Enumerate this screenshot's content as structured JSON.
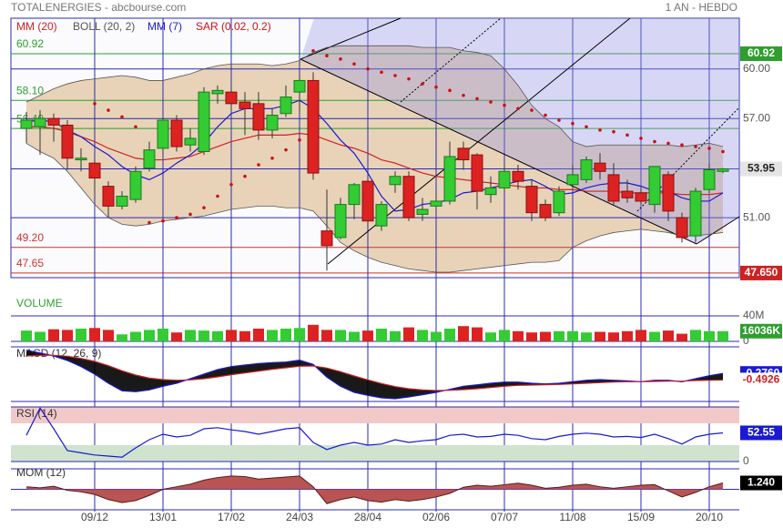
{
  "header": {
    "title": "TOTALENERGIES - abcbourse.com",
    "period": "1 AN - HEBDO"
  },
  "chart_data": [
    {
      "type": "candlestick",
      "categories": [
        null,
        null,
        null,
        null,
        null,
        "09/12",
        null,
        null,
        null,
        null,
        "13/01",
        null,
        null,
        null,
        null,
        "17/02",
        null,
        null,
        null,
        null,
        "24/03",
        null,
        null,
        null,
        null,
        "28/04",
        null,
        null,
        null,
        null,
        "02/06",
        null,
        null,
        null,
        null,
        "07/07",
        null,
        null,
        null,
        null,
        "11/08",
        null,
        null,
        null,
        null,
        "15/09",
        null,
        null,
        null,
        null,
        "20/10",
        null
      ],
      "open": [
        56.4,
        56.5,
        57.0,
        56.6,
        54.5,
        54.3,
        52.9,
        51.7,
        52.1,
        54.0,
        55.2,
        56.9,
        55.4,
        55.0,
        58.5,
        58.6,
        58.0,
        57.9,
        56.3,
        57.3,
        58.6,
        59.3,
        50.2,
        49.8,
        51.8,
        53.2,
        50.5,
        53.0,
        53.5,
        51.2,
        51.7,
        52.0,
        55.2,
        54.8,
        52.4,
        52.8,
        53.8,
        52.9,
        51.8,
        51.3,
        53.0,
        53.3,
        54.3,
        53.6,
        52.6,
        52.5,
        51.8,
        53.6,
        51.0,
        49.9,
        52.7,
        53.8
      ],
      "high": [
        57.4,
        57.5,
        57.3,
        56.9,
        55.2,
        54.5,
        53.2,
        52.6,
        54.1,
        55.6,
        57.1,
        57.2,
        56.4,
        58.9,
        59.0,
        58.9,
        58.6,
        58.6,
        57.6,
        59.0,
        59.6,
        59.8,
        52.7,
        52.2,
        53.1,
        53.4,
        52.0,
        53.8,
        53.8,
        52.2,
        52.6,
        55.6,
        55.6,
        54.9,
        53.5,
        54.2,
        54.2,
        53.3,
        52.1,
        52.9,
        54.2,
        54.7,
        54.9,
        54.3,
        53.3,
        52.8,
        54.1,
        53.8,
        51.3,
        52.8,
        54.3,
        54.0
      ],
      "low": [
        55.5,
        54.8,
        55.6,
        53.9,
        53.8,
        52.4,
        51.0,
        51.5,
        51.9,
        53.8,
        54.9,
        55.0,
        55.0,
        54.8,
        57.9,
        57.5,
        56.0,
        55.7,
        55.8,
        57.1,
        57.3,
        53.3,
        47.8,
        49.7,
        50.9,
        50.5,
        50.2,
        52.5,
        50.8,
        50.8,
        51.3,
        51.8,
        53.9,
        51.5,
        51.9,
        52.5,
        52.7,
        50.8,
        50.8,
        51.1,
        52.9,
        53.1,
        53.3,
        51.8,
        51.9,
        51.8,
        51.3,
        50.8,
        49.5,
        49.5,
        52.5,
        53.7
      ],
      "close": [
        56.9,
        57.0,
        56.6,
        54.6,
        54.6,
        53.4,
        51.7,
        52.3,
        53.8,
        55.1,
        56.9,
        55.3,
        55.8,
        58.6,
        58.7,
        57.9,
        57.6,
        56.3,
        57.2,
        58.3,
        59.3,
        53.7,
        49.3,
        51.8,
        53.0,
        50.8,
        51.8,
        53.5,
        51.0,
        51.5,
        52.0,
        54.7,
        54.5,
        52.6,
        52.8,
        53.8,
        53.2,
        51.3,
        51.0,
        52.6,
        53.6,
        54.5,
        53.8,
        52.0,
        52.2,
        52.0,
        54.1,
        51.4,
        49.8,
        52.6,
        53.9,
        53.95
      ],
      "up_color": "#33cc33",
      "down_color": "#dd2222",
      "series": [
        {
          "name": "MM (20)",
          "color": "#cc2222",
          "values": [
            56.5,
            56.5,
            56.4,
            56.2,
            55.9,
            55.6,
            55.2,
            54.9,
            54.6,
            54.5,
            54.5,
            54.6,
            54.7,
            55.0,
            55.3,
            55.6,
            55.8,
            56.0,
            56.0,
            56.0,
            56.1,
            56.0,
            55.7,
            55.4,
            55.2,
            54.9,
            54.5,
            54.3,
            54.0,
            53.7,
            53.5,
            53.4,
            53.3,
            53.2,
            53.1,
            53.0,
            52.9,
            52.8,
            52.8,
            52.7,
            52.7,
            52.6,
            52.6,
            52.6,
            52.5,
            52.5,
            52.5,
            52.5,
            52.4,
            52.4,
            52.4,
            52.5
          ]
        },
        {
          "name": "BOLL (20, 2)",
          "color": "#555555",
          "fill": "#e8d3b9",
          "upper": [
            58.0,
            58.4,
            58.8,
            59.1,
            59.3,
            59.4,
            59.5,
            59.6,
            59.5,
            59.3,
            59.3,
            59.5,
            59.7,
            60.0,
            60.2,
            60.3,
            60.3,
            60.3,
            60.2,
            60.3,
            60.5,
            61.0,
            61.3,
            61.4,
            61.4,
            61.4,
            61.4,
            61.4,
            61.4,
            61.3,
            61.3,
            61.3,
            61.1,
            61.0,
            60.8,
            60.0,
            59.0,
            57.8,
            57.0,
            56.5,
            55.6,
            55.3,
            55.4,
            55.4,
            55.4,
            55.4,
            55.4,
            55.4,
            55.3,
            55.4,
            55.5,
            55.3
          ],
          "lower": [
            55.5,
            55.0,
            54.6,
            53.8,
            52.8,
            51.8,
            51.0,
            50.6,
            50.5,
            50.6,
            50.8,
            50.9,
            51.0,
            51.1,
            51.3,
            51.5,
            51.6,
            51.7,
            51.7,
            51.6,
            51.6,
            51.4,
            50.5,
            49.5,
            49.0,
            48.6,
            48.3,
            48.1,
            47.9,
            47.8,
            47.7,
            47.7,
            47.8,
            47.9,
            48.0,
            48.1,
            48.2,
            48.3,
            48.3,
            48.4,
            49.2,
            49.6,
            49.9,
            50.1,
            50.2,
            50.3,
            50.2,
            50.1,
            49.9,
            49.9,
            50.0,
            50.1
          ]
        },
        {
          "name": "MM (7)",
          "color": "#1a1ad0",
          "values": [
            56.8,
            56.9,
            56.8,
            56.3,
            55.9,
            55.3,
            54.8,
            54.1,
            53.6,
            53.3,
            53.7,
            54.3,
            54.8,
            55.5,
            56.5,
            57.3,
            57.6,
            57.6,
            57.6,
            57.8,
            58.1,
            57.6,
            56.7,
            55.7,
            54.9,
            53.7,
            52.3,
            51.4,
            51.5,
            51.8,
            51.9,
            52.1,
            52.5,
            52.6,
            52.8,
            53.0,
            53.2,
            53.3,
            52.9,
            52.4,
            52.5,
            52.8,
            53.0,
            53.1,
            53.1,
            52.9,
            52.6,
            52.6,
            52.2,
            52.0,
            52.0,
            52.5
          ]
        },
        {
          "name": "SAR (0.02, 0.2)",
          "color": "#cc1111",
          "style": "dots",
          "values": [
            null,
            null,
            null,
            null,
            null,
            57.9,
            57.5,
            57.1,
            56.5,
            50.7,
            50.8,
            51.0,
            51.2,
            51.6,
            52.3,
            53.0,
            53.5,
            54.2,
            54.6,
            55.1,
            55.7,
            61.1,
            60.8,
            60.6,
            60.3,
            60.0,
            59.8,
            59.6,
            59.4,
            59.1,
            58.9,
            58.7,
            58.4,
            58.2,
            58.0,
            57.8,
            57.6,
            57.5,
            57.2,
            56.9,
            56.7,
            56.5,
            56.3,
            56.2,
            56.0,
            55.8,
            55.6,
            55.5,
            55.4,
            55.3,
            55.2,
            55.0
          ]
        }
      ],
      "levels": [
        {
          "value": 60.92,
          "label": "60.92",
          "color": "#2f9e2f"
        },
        {
          "value": 58.1,
          "label": "58.10",
          "color": "#2f9e2f"
        },
        {
          "value": 56.4,
          "label": "56.40",
          "color": "#2f9e2f"
        },
        {
          "value": 49.2,
          "label": "49.20",
          "color": "#cc3333"
        },
        {
          "value": 47.65,
          "label": "47.65",
          "color": "#cc3333"
        }
      ],
      "tags": [
        {
          "value": 60.92,
          "label": "60.92",
          "color": "#2f9e2f"
        },
        {
          "value": 47.65,
          "label": "47.650",
          "color": "#cc2222"
        }
      ],
      "last_color": "#e4e4e4",
      "ylim": [
        47.37,
        63.07
      ],
      "yticks": [
        {
          "value": 51,
          "label": "51.00"
        },
        {
          "value": 57,
          "label": "57.00"
        },
        {
          "value": 60,
          "label": "60.00"
        }
      ],
      "grid": true
    },
    {
      "type": "bar",
      "title": "VOLUME",
      "values": [
        17,
        15,
        19,
        18,
        20,
        21,
        18,
        11,
        15,
        18,
        20,
        14,
        18,
        17,
        16,
        18,
        16,
        20,
        18,
        20,
        21,
        26,
        18,
        18,
        15,
        17,
        20,
        16,
        22,
        18,
        15,
        20,
        24,
        22,
        14,
        18,
        16,
        14,
        15,
        16,
        16,
        14,
        15,
        14,
        16,
        18,
        15,
        17,
        12,
        18,
        16,
        16.036
      ],
      "last_label": "16036K",
      "tag_color": "#2f9e2f",
      "ylim": [
        0,
        40
      ],
      "yticks": [
        0,
        {
          "value": 40,
          "label": "40M"
        }
      ],
      "grid": true
    },
    {
      "type": "line",
      "title": "MACD (12, 26, 9)",
      "fill_between": "#000000",
      "series": [
        {
          "color": "#1a1ad0",
          "last_label": "-0.2760",
          "tag_color": "#1a1ad0",
          "values": [
            0.49,
            0.4,
            0.3,
            0.15,
            -0.05,
            -0.3,
            -0.6,
            -0.85,
            -0.88,
            -0.82,
            -0.7,
            -0.6,
            -0.45,
            -0.3,
            -0.15,
            -0.05,
            0,
            0.05,
            0.08,
            0.1,
            0.16,
            0.02,
            -0.4,
            -0.7,
            -0.9,
            -1.0,
            -1.08,
            -1.11,
            -1.05,
            -0.98,
            -0.9,
            -0.8,
            -0.7,
            -0.65,
            -0.6,
            -0.56,
            -0.56,
            -0.6,
            -0.62,
            -0.6,
            -0.55,
            -0.5,
            -0.48,
            -0.5,
            -0.52,
            -0.55,
            -0.5,
            -0.5,
            -0.55,
            -0.45,
            -0.35,
            -0.276
          ]
        },
        {
          "color": "#cc2020",
          "last_label": "-0.4926",
          "tag_color": "#ffffff",
          "values": [
            0.3,
            0.32,
            0.32,
            0.29,
            0.22,
            0.12,
            -0.02,
            -0.19,
            -0.33,
            -0.43,
            -0.48,
            -0.5,
            -0.49,
            -0.45,
            -0.39,
            -0.32,
            -0.26,
            -0.2,
            -0.14,
            -0.09,
            -0.04,
            -0.03,
            -0.1,
            -0.22,
            -0.36,
            -0.49,
            -0.61,
            -0.71,
            -0.78,
            -0.82,
            -0.84,
            -0.83,
            -0.81,
            -0.78,
            -0.74,
            -0.7,
            -0.67,
            -0.66,
            -0.65,
            -0.64,
            -0.62,
            -0.6,
            -0.58,
            -0.56,
            -0.55,
            -0.55,
            -0.54,
            -0.53,
            -0.53,
            -0.51,
            -0.5,
            -0.4926
          ]
        }
      ],
      "ylim": [
        -1.2,
        0.6
      ]
    },
    {
      "type": "line",
      "title": "RSI (14)",
      "overbought": 70,
      "oversold": 30,
      "overbought_color": "#f2c9c9",
      "oversold_color": "#cfe3cf",
      "series": [
        {
          "color": "#1a1ad0",
          "tag_color": "#1a1ad0",
          "values": [
            48,
            98,
            60,
            20,
            16,
            12,
            10,
            8,
            25,
            40,
            50,
            45,
            48,
            60,
            62,
            58,
            55,
            50,
            55,
            60,
            62,
            35,
            22,
            30,
            35,
            30,
            32,
            40,
            35,
            38,
            40,
            48,
            50,
            45,
            46,
            50,
            48,
            42,
            40,
            46,
            50,
            52,
            50,
            45,
            46,
            44,
            50,
            42,
            32,
            45,
            50,
            52.55
          ]
        }
      ],
      "ylim": [
        0,
        100
      ],
      "yticks": [
        0
      ]
    },
    {
      "type": "area",
      "title": "MOM (12)",
      "color": "#b85454",
      "line_color": "#5a1a1a",
      "last_label": "1.240",
      "tag_color": "#000000",
      "values": [
        0.5,
        0.3,
        0.6,
        -0.2,
        -0.5,
        -1.0,
        -2.0,
        -2.6,
        -2.2,
        -1.2,
        0,
        0.5,
        1.0,
        1.8,
        2.3,
        2.6,
        2.5,
        2.0,
        2.2,
        2.4,
        2.6,
        0.5,
        -2.8,
        -2.0,
        -1.5,
        -2.2,
        -2.5,
        -2.0,
        -2.3,
        -2.0,
        -1.5,
        -0.8,
        0.4,
        0.8,
        0.6,
        0.9,
        1.2,
        0.8,
        0.2,
        0.4,
        0.8,
        1.0,
        0.5,
        0.2,
        0.5,
        0.8,
        0.9,
        -0.3,
        -1.5,
        -0.6,
        0.5,
        1.24
      ],
      "ylim": [
        -4,
        4
      ]
    }
  ]
}
